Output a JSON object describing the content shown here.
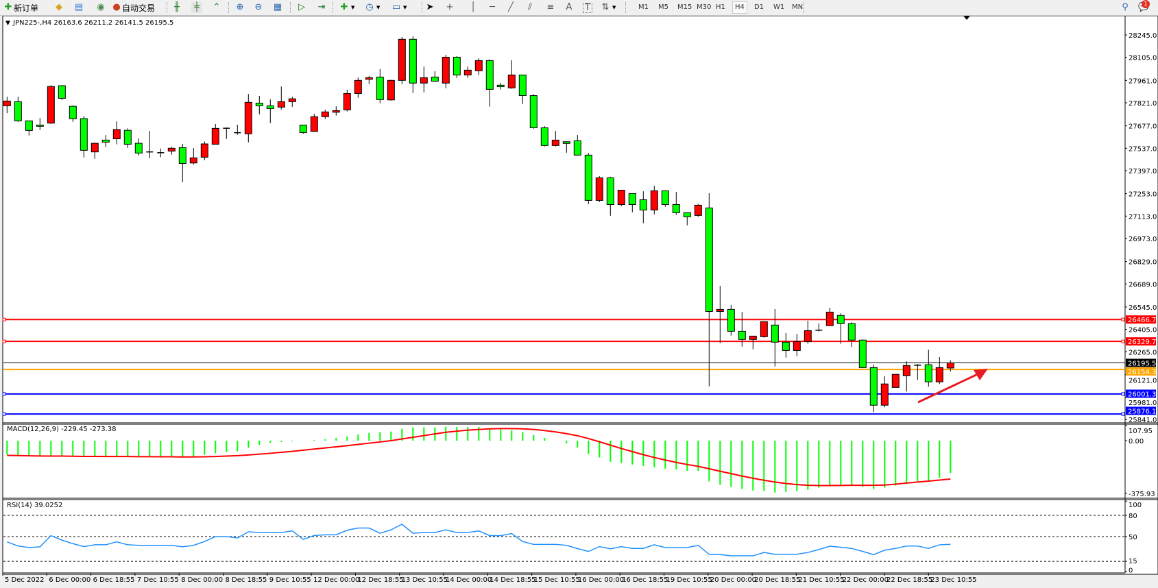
{
  "toolbar": {
    "new_order_label": "新订单",
    "auto_trading_label": "自动交易",
    "icons": [
      "new-order-icon",
      "gold-icon",
      "data-window-icon",
      "signal-icon",
      "auto-trading-icon",
      "bar-chart-icon",
      "candlestick-icon",
      "line-chart-icon",
      "zoom-in-icon",
      "zoom-out-icon",
      "tile-windows-icon",
      "auto-scroll-icon",
      "chart-shift-icon",
      "indicators-icon",
      "periods-icon",
      "templates-icon",
      "cursor-icon",
      "crosshair-icon",
      "vertical-line-icon",
      "horizontal-line-icon",
      "trendline-icon",
      "equidistant-channel-icon",
      "fibonacci-icon",
      "text-icon",
      "text-label-icon",
      "arrows-icon",
      "search-icon",
      "notifications-icon"
    ],
    "text_tool_label": "A",
    "label_tool_label": "T",
    "timeframes": [
      "M1",
      "M5",
      "M15",
      "M30",
      "H1",
      "H4",
      "D1",
      "W1",
      "MN"
    ],
    "active_timeframe": "H4",
    "notification_count": "1"
  },
  "chart": {
    "header": "JPN225-,H4  26163.6 26211.2 26141.5 26195.5",
    "price_axis": [
      "28245.0",
      "28105.0",
      "27961.0",
      "27821.0",
      "27677.0",
      "27537.0",
      "27397.0",
      "27253.0",
      "27113.0",
      "26973.0",
      "26829.0",
      "26689.0",
      "26545.0",
      "26405.0",
      "26265.0",
      "26121.0",
      "25981.0",
      "25841.0"
    ],
    "levels": [
      {
        "price": 26466.7,
        "label": "26466.7",
        "color": "#ff0000"
      },
      {
        "price": 26329.7,
        "label": "26329.7",
        "color": "#ff0000"
      },
      {
        "price": 26195.5,
        "label": "26195.5",
        "color": "#000000"
      },
      {
        "price": 26154.3,
        "label": "26154.3",
        "color": "#ffa500"
      },
      {
        "price": 26001.3,
        "label": "26001.3",
        "color": "#0000ff"
      },
      {
        "price": 25876.1,
        "label": "25876.1",
        "color": "#0000ff"
      }
    ],
    "time_axis": [
      "5 Dec 2022",
      "6 Dec 00:00",
      "6 Dec 18:55",
      "7 Dec 10:55",
      "8 Dec 00:00",
      "8 Dec 18:55",
      "9 Dec 10:55",
      "12 Dec 00:00",
      "12 Dec 18:55",
      "13 Dec 10:55",
      "14 Dec 00:00",
      "14 Dec 18:55",
      "15 Dec 10:55",
      "16 Dec 00:00",
      "16 Dec 18:55",
      "19 Dec 10:55",
      "20 Dec 00:00",
      "20 Dec 18:55",
      "21 Dec 10:55",
      "22 Dec 00:00",
      "22 Dec 18:55",
      "23 Dec 10:55"
    ],
    "macd_label": "MACD(12,26,9) -229.45 -273.38",
    "macd_axis": [
      "107.95",
      "0.00",
      "-375.93"
    ],
    "rsi_label": "RSI(14) 39.0252",
    "rsi_axis": [
      "100",
      "80",
      "50",
      "15",
      "0"
    ],
    "colors": {
      "bull": "#ff0000",
      "bear": "#00ff00",
      "macd_hist": "#00ff00",
      "signal": "#ff0000",
      "rsi": "#1e90ff",
      "arrow": "#e81c24"
    }
  },
  "chart_data": [
    {
      "type": "candlestick",
      "symbol": "JPN225-",
      "timeframe": "H4",
      "ylim": [
        25841,
        28245
      ],
      "ohlc": [
        [
          27802,
          27859,
          27756,
          27832
        ],
        [
          27828,
          27859,
          27702,
          27708
        ],
        [
          27708,
          27708,
          27617,
          27648
        ],
        [
          27682,
          27726,
          27651,
          27674
        ],
        [
          27694,
          27931,
          27689,
          27923
        ],
        [
          27928,
          27928,
          27839,
          27849
        ],
        [
          27799,
          27805,
          27702,
          27721
        ],
        [
          27722,
          27738,
          27479,
          27524
        ],
        [
          27514,
          27572,
          27471,
          27568
        ],
        [
          27588,
          27619,
          27544,
          27575
        ],
        [
          27596,
          27705,
          27561,
          27654
        ],
        [
          27649,
          27661,
          27539,
          27562
        ],
        [
          27568,
          27598,
          27492,
          27507
        ],
        [
          27514,
          27645,
          27475,
          27514
        ],
        [
          27509,
          27535,
          27481,
          27509
        ],
        [
          27519,
          27547,
          27497,
          27537
        ],
        [
          27541,
          27564,
          27325,
          27442
        ],
        [
          27445,
          27538,
          27435,
          27477
        ],
        [
          27481,
          27579,
          27462,
          27564
        ],
        [
          27562,
          27688,
          27562,
          27661
        ],
        [
          27662,
          27666,
          27595,
          27662
        ],
        [
          27634,
          27684,
          27621,
          27634
        ],
        [
          27627,
          27876,
          27574,
          27824
        ],
        [
          27819,
          27864,
          27749,
          27802
        ],
        [
          27802,
          27842,
          27694,
          27785
        ],
        [
          27794,
          27923,
          27779,
          27828
        ],
        [
          27828,
          27859,
          27796,
          27846
        ],
        [
          27682,
          27682,
          27628,
          27635
        ],
        [
          27642,
          27752,
          27642,
          27734
        ],
        [
          27734,
          27778,
          27719,
          27764
        ],
        [
          27762,
          27799,
          27741,
          27772
        ],
        [
          27777,
          27902,
          27767,
          27879
        ],
        [
          27879,
          27979,
          27852,
          27961
        ],
        [
          27968,
          27988,
          27938,
          27978
        ],
        [
          27982,
          28031,
          27818,
          27841
        ],
        [
          27839,
          27965,
          27835,
          27961
        ],
        [
          27961,
          28232,
          27938,
          28218
        ],
        [
          28218,
          28236,
          27882,
          27944
        ],
        [
          27944,
          28048,
          27886,
          27978
        ],
        [
          27982,
          28018,
          27956,
          27956
        ],
        [
          27944,
          28121,
          27912,
          28106
        ],
        [
          28106,
          28112,
          27976,
          27995
        ],
        [
          27995,
          28048,
          27976,
          28025
        ],
        [
          28021,
          28099,
          27994,
          28085
        ],
        [
          28085,
          28092,
          27797,
          27905
        ],
        [
          27931,
          27945,
          27904,
          27922
        ],
        [
          27914,
          28086,
          27909,
          27995
        ],
        [
          27995,
          27995,
          27814,
          27866
        ],
        [
          27866,
          27875,
          27659,
          27665
        ],
        [
          27665,
          27674,
          27548,
          27554
        ],
        [
          27554,
          27645,
          27548,
          27588
        ],
        [
          27578,
          27578,
          27509,
          27567
        ],
        [
          27584,
          27619,
          27494,
          27494
        ],
        [
          27494,
          27508,
          27188,
          27211
        ],
        [
          27211,
          27362,
          27201,
          27352
        ],
        [
          27352,
          27358,
          27115,
          27185
        ],
        [
          27185,
          27275,
          27175,
          27275
        ],
        [
          27254,
          27254,
          27137,
          27185
        ],
        [
          27215,
          27268,
          27068,
          27151
        ],
        [
          27151,
          27302,
          27124,
          27271
        ],
        [
          27271,
          27271,
          27171,
          27185
        ],
        [
          27185,
          27264,
          27120,
          27134
        ],
        [
          27134,
          27134,
          27055,
          27108
        ],
        [
          27117,
          27190,
          27108,
          27181
        ],
        [
          27164,
          27256,
          26049,
          26517
        ],
        [
          26517,
          26677,
          26319,
          26530
        ],
        [
          26530,
          26557,
          26366,
          26393
        ],
        [
          26393,
          26514,
          26297,
          26342
        ],
        [
          26342,
          26363,
          26280,
          26363
        ],
        [
          26359,
          26453,
          26353,
          26453
        ],
        [
          26432,
          26532,
          26173,
          26325
        ],
        [
          26325,
          26382,
          26229,
          26273
        ],
        [
          26273,
          26377,
          26237,
          26329
        ],
        [
          26329,
          26459,
          26315,
          26397
        ],
        [
          26400,
          26442,
          26392,
          26400
        ],
        [
          26428,
          26540,
          26427,
          26513
        ],
        [
          26492,
          26505,
          26315,
          26441
        ],
        [
          26441,
          26449,
          26294,
          26338
        ],
        [
          26338,
          26342,
          26162,
          26166
        ],
        [
          26166,
          26184,
          25888,
          25931
        ],
        [
          25931,
          26112,
          25918,
          26064
        ],
        [
          26042,
          26124,
          26042,
          26124
        ],
        [
          26115,
          26205,
          26017,
          26179
        ],
        [
          26181,
          26188,
          26089,
          26181
        ],
        [
          26184,
          26278,
          26047,
          26077
        ],
        [
          26077,
          26232,
          26064,
          26166
        ],
        [
          26163.6,
          26211.2,
          26141.5,
          26195.5
        ]
      ]
    },
    {
      "type": "bar+line",
      "title": "MACD(12,26,9)",
      "ylim": [
        -375.93,
        107.95
      ],
      "macd": [
        -100,
        -105,
        -112,
        -110,
        -108,
        -110,
        -112,
        -115,
        -113,
        -110,
        -108,
        -110,
        -112,
        -115,
        -117,
        -118,
        -120,
        -113,
        -100,
        -90,
        -80,
        -75,
        -50,
        -30,
        -15,
        -10,
        -5,
        0,
        5,
        10,
        20,
        30,
        45,
        55,
        60,
        65,
        85,
        95,
        95,
        95,
        100,
        98,
        97,
        98,
        90,
        80,
        75,
        60,
        40,
        20,
        0,
        -20,
        -50,
        -95,
        -120,
        -150,
        -160,
        -170,
        -180,
        -190,
        -200,
        -205,
        -215,
        -215,
        -290,
        -315,
        -330,
        -345,
        -355,
        -358,
        -370,
        -365,
        -360,
        -350,
        -335,
        -320,
        -320,
        -315,
        -330,
        -345,
        -335,
        -320,
        -305,
        -290,
        -285,
        -265,
        -229.45
      ],
      "signal": [
        -105,
        -106,
        -108,
        -109,
        -110,
        -110,
        -111,
        -112,
        -112,
        -113,
        -113,
        -113,
        -114,
        -114,
        -115,
        -115,
        -116,
        -116,
        -115,
        -113,
        -110,
        -107,
        -102,
        -96,
        -90,
        -83,
        -76,
        -68,
        -60,
        -52,
        -44,
        -36,
        -27,
        -18,
        -9,
        0,
        12,
        24,
        36,
        48,
        60,
        68,
        75,
        80,
        84,
        86,
        86,
        84,
        80,
        72,
        62,
        50,
        35,
        15,
        -8,
        -32,
        -56,
        -78,
        -100,
        -120,
        -138,
        -155,
        -170,
        -183,
        -200,
        -218,
        -235,
        -252,
        -268,
        -282,
        -295,
        -305,
        -313,
        -318,
        -320,
        -320,
        -319,
        -318,
        -318,
        -318,
        -316,
        -310,
        -302,
        -295,
        -288,
        -281,
        -273.38
      ]
    },
    {
      "type": "line",
      "title": "RSI(14)",
      "ylim": [
        0,
        100
      ],
      "levels": [
        80,
        50,
        15
      ],
      "values": [
        42.5,
        36.7,
        34.5,
        35.5,
        51.3,
        45,
        40,
        35.8,
        38.4,
        38.4,
        42.5,
        38.4,
        37.6,
        37.6,
        37.6,
        37.6,
        35.5,
        37.6,
        43,
        50,
        50,
        48,
        56.7,
        55.7,
        55.7,
        55.7,
        58,
        46,
        51.5,
        52.5,
        52.5,
        59,
        62,
        62,
        54.7,
        59.5,
        67.5,
        54.7,
        55.7,
        55.7,
        59.5,
        55.7,
        55.7,
        58,
        51.3,
        51.3,
        54.3,
        43,
        39,
        39,
        39,
        37.6,
        33,
        29,
        35.8,
        32.7,
        35.8,
        33.3,
        33.3,
        38.4,
        34.5,
        34.5,
        34.5,
        37.6,
        25,
        24.5,
        22.8,
        22.8,
        22.8,
        27.5,
        25,
        25,
        25,
        27.5,
        31.7,
        36.4,
        35,
        33.3,
        29,
        24.5,
        30.8,
        33.3,
        36.7,
        36.7,
        33.3,
        38.4,
        39.03
      ]
    }
  ]
}
